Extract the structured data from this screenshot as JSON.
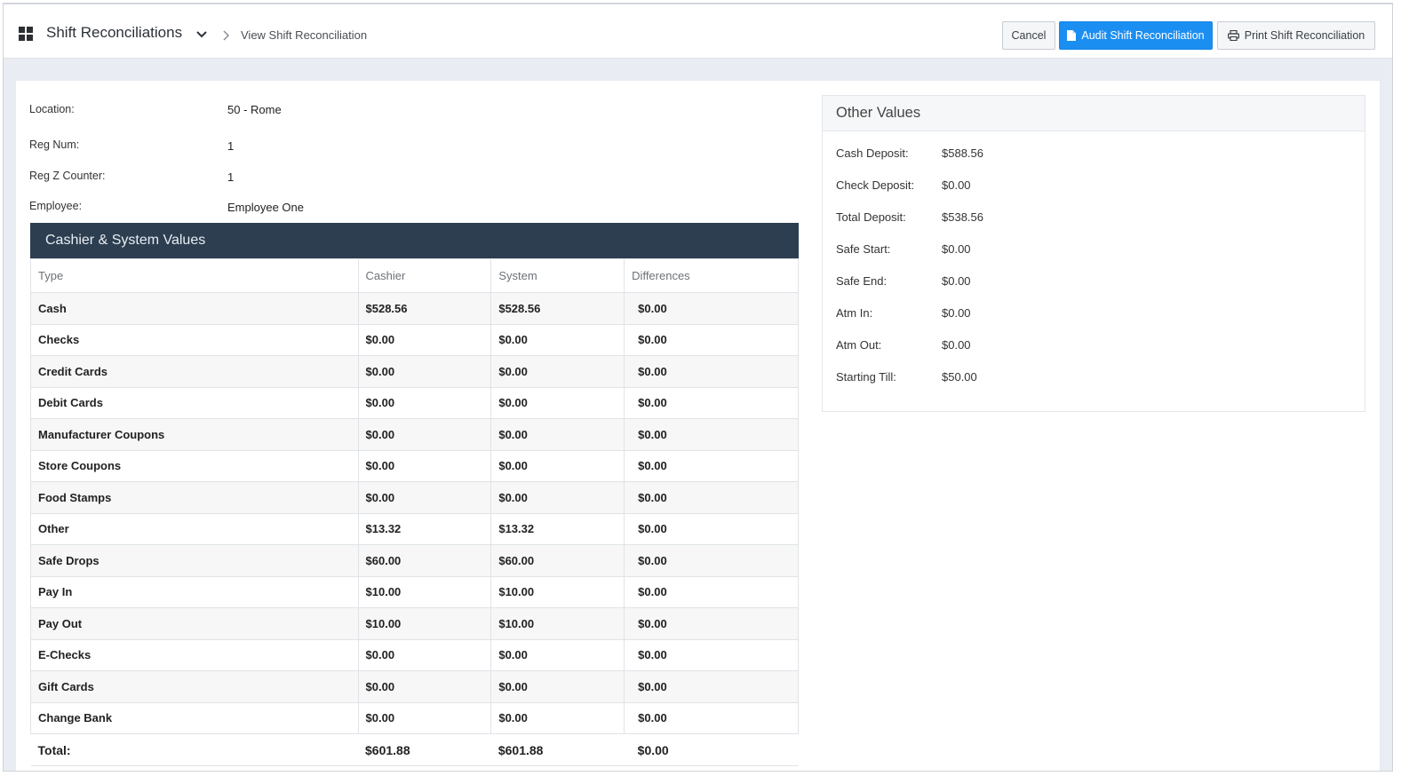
{
  "header": {
    "title": "Shift Reconciliations",
    "breadcrumb": "View Shift Reconciliation",
    "cancel_label": "Cancel",
    "audit_label": "Audit Shift Reconciliation",
    "print_label": "Print Shift Reconciliation",
    "accent_color": "#1b8ef2"
  },
  "details": {
    "location_label": "Location:",
    "location_value": "50 - Rome",
    "regnum_label": "Reg Num:",
    "regnum_value": "1",
    "regz_label": "Reg Z Counter:",
    "regz_value": "1",
    "employee_label": "Employee:",
    "employee_value": "Employee One"
  },
  "cashier_panel": {
    "title": "Cashier & System Values",
    "header_color": "#2c3e50",
    "columns": [
      "Type",
      "Cashier",
      "System",
      "Differences"
    ],
    "rows": [
      [
        "Cash",
        "$528.56",
        "$528.56",
        "$0.00"
      ],
      [
        "Checks",
        "$0.00",
        "$0.00",
        "$0.00"
      ],
      [
        "Credit Cards",
        "$0.00",
        "$0.00",
        "$0.00"
      ],
      [
        "Debit Cards",
        "$0.00",
        "$0.00",
        "$0.00"
      ],
      [
        "Manufacturer Coupons",
        "$0.00",
        "$0.00",
        "$0.00"
      ],
      [
        "Store Coupons",
        "$0.00",
        "$0.00",
        "$0.00"
      ],
      [
        "Food Stamps",
        "$0.00",
        "$0.00",
        "$0.00"
      ],
      [
        "Other",
        "$13.32",
        "$13.32",
        "$0.00"
      ],
      [
        "Safe Drops",
        "$60.00",
        "$60.00",
        "$0.00"
      ],
      [
        "Pay In",
        "$10.00",
        "$10.00",
        "$0.00"
      ],
      [
        "Pay Out",
        "$10.00",
        "$10.00",
        "$0.00"
      ],
      [
        "E-Checks",
        "$0.00",
        "$0.00",
        "$0.00"
      ],
      [
        "Gift Cards",
        "$0.00",
        "$0.00",
        "$0.00"
      ],
      [
        "Change Bank",
        "$0.00",
        "$0.00",
        "$0.00"
      ]
    ],
    "total": [
      "Total:",
      "$601.88",
      "$601.88",
      "$0.00"
    ]
  },
  "other_values": {
    "title": "Other Values",
    "items": [
      {
        "label": "Cash Deposit:",
        "value": "$588.56"
      },
      {
        "label": "Check Deposit:",
        "value": "$0.00"
      },
      {
        "label": "Total Deposit:",
        "value": "$538.56"
      },
      {
        "label": "Safe Start:",
        "value": "$0.00"
      },
      {
        "label": "Safe End:",
        "value": "$0.00"
      },
      {
        "label": "Atm In:",
        "value": "$0.00"
      },
      {
        "label": "Atm Out:",
        "value": "$0.00"
      },
      {
        "label": "Starting Till:",
        "value": "$50.00"
      }
    ]
  }
}
